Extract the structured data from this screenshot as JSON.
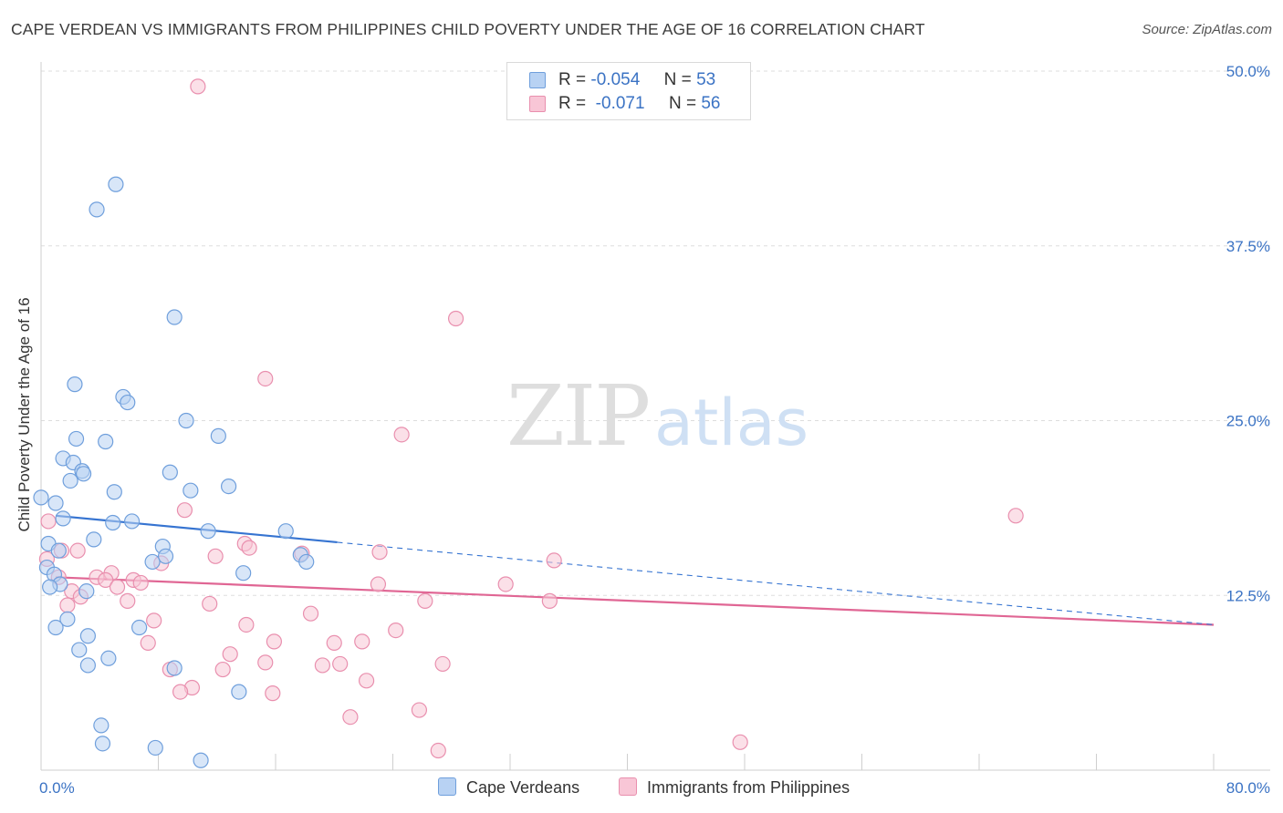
{
  "title": "CAPE VERDEAN VS IMMIGRANTS FROM PHILIPPINES CHILD POVERTY UNDER THE AGE OF 16 CORRELATION CHART",
  "source": "Source: ZipAtlas.com",
  "watermark": {
    "zip": "ZIP",
    "atlas": "atlas"
  },
  "colors": {
    "blue_fill": "#b8d2f3",
    "blue_stroke": "#6f9fdc",
    "blue_line": "#3674d1",
    "pink_fill": "#f8c6d6",
    "pink_stroke": "#e98fae",
    "pink_line": "#e06694",
    "axis_label": "#3b73c4",
    "grid": "#dddddd"
  },
  "legend": {
    "rows": [
      {
        "r_label": "R =",
        "r_value": "-0.054",
        "n_label": "N =",
        "n_value": "53"
      },
      {
        "r_label": "R =",
        "r_value": "-0.071",
        "n_label": "N =",
        "n_value": "56"
      }
    ]
  },
  "bottom_legend": [
    "Cape Verdeans",
    "Immigrants from Philippines"
  ],
  "chart_data": {
    "type": "scatter",
    "title": "CAPE VERDEAN VS IMMIGRANTS FROM PHILIPPINES CHILD POVERTY UNDER THE AGE OF 16 CORRELATION CHART",
    "xlabel": "",
    "ylabel": "Child Poverty Under the Age of 16",
    "xlim": [
      0,
      80
    ],
    "ylim": [
      0,
      50
    ],
    "x_tick_labels": [
      "0.0%",
      "80.0%"
    ],
    "y_ticks": [
      12.5,
      25.0,
      37.5,
      50.0
    ],
    "y_tick_labels": [
      "12.5%",
      "25.0%",
      "37.5%",
      "50.0%"
    ],
    "grid": true,
    "series": [
      {
        "name": "Cape Verdeans",
        "r": -0.054,
        "n": 53,
        "trend": {
          "x0": 1.0,
          "y0": 18.2,
          "x1": 20.2,
          "y1": 16.3,
          "dash_to_x": 80,
          "dash_to_y": 10.4
        },
        "points": [
          [
            5.1,
            41.9
          ],
          [
            3.8,
            40.1
          ],
          [
            9.1,
            32.4
          ],
          [
            2.3,
            27.6
          ],
          [
            5.6,
            26.7
          ],
          [
            5.9,
            26.3
          ],
          [
            9.9,
            25.0
          ],
          [
            12.1,
            23.9
          ],
          [
            2.4,
            23.7
          ],
          [
            4.4,
            23.5
          ],
          [
            1.5,
            22.3
          ],
          [
            2.2,
            22.0
          ],
          [
            2.8,
            21.4
          ],
          [
            2.9,
            21.2
          ],
          [
            2.0,
            20.7
          ],
          [
            8.8,
            21.3
          ],
          [
            12.8,
            20.3
          ],
          [
            5.0,
            19.9
          ],
          [
            10.2,
            20.0
          ],
          [
            0.0,
            19.5
          ],
          [
            1.0,
            19.1
          ],
          [
            1.5,
            18.0
          ],
          [
            4.9,
            17.7
          ],
          [
            6.2,
            17.8
          ],
          [
            11.4,
            17.1
          ],
          [
            16.7,
            17.1
          ],
          [
            3.6,
            16.5
          ],
          [
            0.5,
            16.2
          ],
          [
            8.3,
            16.0
          ],
          [
            1.2,
            15.7
          ],
          [
            8.5,
            15.3
          ],
          [
            17.7,
            15.4
          ],
          [
            7.6,
            14.9
          ],
          [
            18.1,
            14.9
          ],
          [
            0.4,
            14.5
          ],
          [
            0.9,
            14.0
          ],
          [
            13.8,
            14.1
          ],
          [
            1.3,
            13.3
          ],
          [
            0.6,
            13.1
          ],
          [
            3.1,
            12.8
          ],
          [
            1.8,
            10.8
          ],
          [
            1.0,
            10.2
          ],
          [
            6.7,
            10.2
          ],
          [
            3.2,
            9.6
          ],
          [
            2.6,
            8.6
          ],
          [
            4.6,
            8.0
          ],
          [
            3.2,
            7.5
          ],
          [
            9.1,
            7.3
          ],
          [
            13.5,
            5.6
          ],
          [
            4.1,
            3.2
          ],
          [
            4.2,
            1.9
          ],
          [
            7.8,
            1.6
          ],
          [
            10.9,
            0.7
          ]
        ]
      },
      {
        "name": "Immigrants from Philippines",
        "r": -0.071,
        "n": 56,
        "trend": {
          "x0": 1.0,
          "y0": 13.8,
          "x1": 80,
          "y1": 10.4
        },
        "points": [
          [
            10.7,
            48.9
          ],
          [
            28.3,
            32.3
          ],
          [
            15.3,
            28.0
          ],
          [
            24.6,
            24.0
          ],
          [
            66.5,
            18.2
          ],
          [
            0.5,
            17.8
          ],
          [
            9.8,
            18.6
          ],
          [
            13.9,
            16.2
          ],
          [
            14.2,
            15.9
          ],
          [
            1.4,
            15.7
          ],
          [
            2.5,
            15.7
          ],
          [
            11.9,
            15.3
          ],
          [
            17.8,
            15.5
          ],
          [
            23.1,
            15.6
          ],
          [
            35.0,
            15.0
          ],
          [
            0.4,
            15.1
          ],
          [
            8.2,
            14.8
          ],
          [
            1.2,
            13.8
          ],
          [
            4.8,
            14.1
          ],
          [
            3.8,
            13.8
          ],
          [
            4.4,
            13.6
          ],
          [
            6.3,
            13.6
          ],
          [
            6.8,
            13.4
          ],
          [
            23.0,
            13.3
          ],
          [
            31.7,
            13.3
          ],
          [
            5.2,
            13.1
          ],
          [
            2.1,
            12.8
          ],
          [
            2.7,
            12.4
          ],
          [
            5.9,
            12.1
          ],
          [
            26.2,
            12.1
          ],
          [
            34.7,
            12.1
          ],
          [
            11.5,
            11.9
          ],
          [
            1.8,
            11.8
          ],
          [
            18.4,
            11.2
          ],
          [
            7.7,
            10.7
          ],
          [
            14.0,
            10.4
          ],
          [
            24.2,
            10.0
          ],
          [
            7.3,
            9.1
          ],
          [
            15.9,
            9.2
          ],
          [
            20.0,
            9.1
          ],
          [
            21.9,
            9.2
          ],
          [
            12.9,
            8.3
          ],
          [
            15.3,
            7.7
          ],
          [
            19.2,
            7.5
          ],
          [
            20.4,
            7.6
          ],
          [
            27.4,
            7.6
          ],
          [
            8.8,
            7.2
          ],
          [
            12.4,
            7.2
          ],
          [
            22.2,
            6.4
          ],
          [
            10.3,
            5.9
          ],
          [
            9.5,
            5.6
          ],
          [
            15.8,
            5.5
          ],
          [
            25.8,
            4.3
          ],
          [
            21.1,
            3.8
          ],
          [
            47.7,
            2.0
          ],
          [
            27.1,
            1.4
          ]
        ]
      }
    ]
  }
}
